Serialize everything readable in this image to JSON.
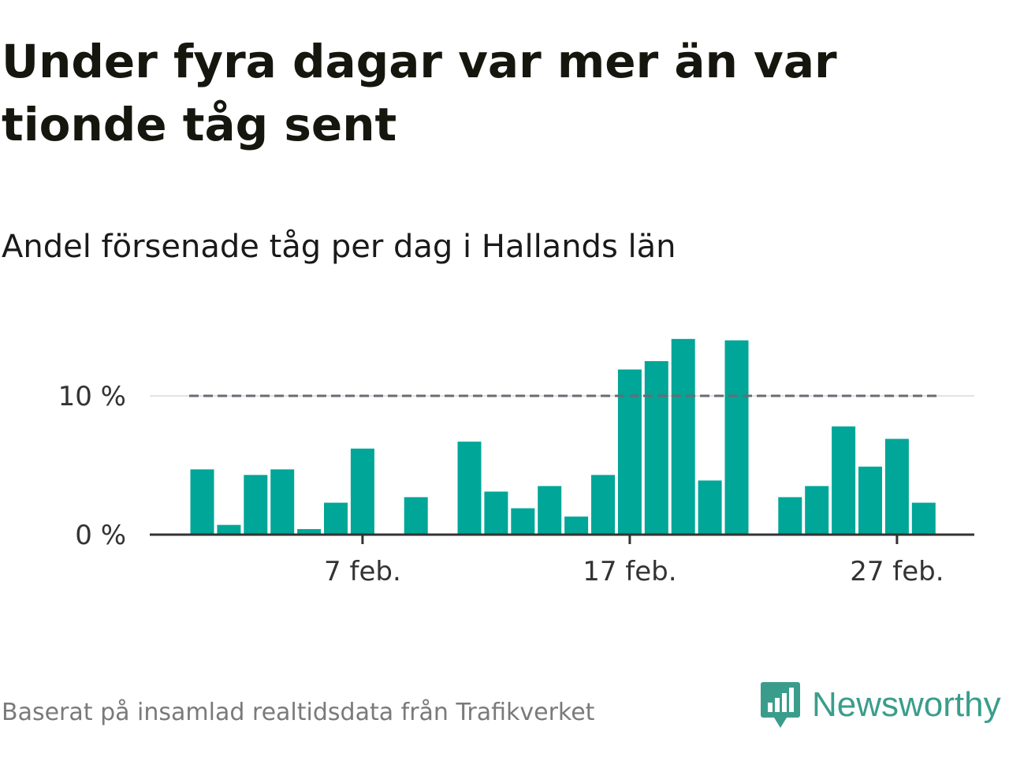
{
  "title": "Under fyra dagar var mer än var tionde tåg sent",
  "subtitle": "Andel försenade tåg per dag i Hallands län",
  "source": "Baserat på insamlad realtidsdata från Trafikverket",
  "brand": {
    "name": "Newsworthy",
    "icon": "bar-chart-speech-bubble-icon",
    "color": "#3a9d8c"
  },
  "chart_data": {
    "type": "bar",
    "x_start_day": 1,
    "x": [
      1,
      2,
      3,
      4,
      5,
      6,
      7,
      8,
      9,
      10,
      11,
      12,
      13,
      14,
      15,
      16,
      17,
      18,
      19,
      20,
      21,
      22,
      23,
      24,
      25,
      26,
      27,
      28
    ],
    "values": [
      4.7,
      0.7,
      4.3,
      4.7,
      0.4,
      2.3,
      6.2,
      0,
      2.7,
      0,
      6.7,
      3.1,
      1.9,
      3.5,
      1.3,
      4.3,
      11.9,
      12.5,
      14.1,
      3.9,
      14.0,
      0,
      2.7,
      3.5,
      7.8,
      4.9,
      6.9,
      2.3
    ],
    "ylim": [
      0,
      14.5
    ],
    "yticks": [
      {
        "value": 0,
        "label": "0 %"
      },
      {
        "value": 10,
        "label": "10 %"
      }
    ],
    "xticks": [
      {
        "value": 7,
        "label": "7 feb."
      },
      {
        "value": 17,
        "label": "17 feb."
      },
      {
        "value": 27,
        "label": "27 feb."
      }
    ],
    "reference_line": {
      "value": 10,
      "style": "dashed",
      "color": "#6b6b73"
    },
    "bar_color": "#00a698",
    "grid": true,
    "xlabel": "",
    "ylabel": ""
  }
}
